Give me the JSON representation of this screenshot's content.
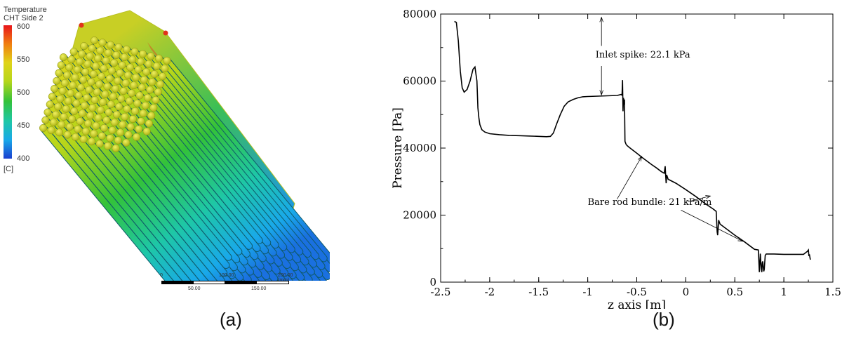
{
  "captions": {
    "a": "(a)",
    "b": "(b)"
  },
  "render_legend": {
    "title_line1": "Temperature",
    "title_line2": "CHT Side 2",
    "ticks": [
      "600",
      "550",
      "500",
      "450",
      "400"
    ],
    "unit": "[C]",
    "colors": {
      "high": "#e8141a",
      "mid": "#33c23a",
      "low": "#1a3fd0"
    }
  },
  "scale_bar": {
    "top_labels": [
      "0",
      "100.00",
      "200.00 (mm)"
    ],
    "bottom_labels": [
      "50.00",
      "150.00"
    ]
  },
  "chart_data": {
    "type": "line",
    "xlabel": "z axis [m]",
    "ylabel": "Pressure [Pa]",
    "xlim": [
      -2.5,
      1.5
    ],
    "ylim": [
      0,
      80000
    ],
    "xticks": [
      -2.5,
      -2,
      -1.5,
      -1,
      -0.5,
      0,
      0.5,
      1,
      1.5
    ],
    "xtick_labels": [
      "-2.5",
      "-2",
      "-1.5",
      "-1",
      "-0.5",
      "0",
      "0.5",
      "1",
      "1.5"
    ],
    "yticks": [
      0,
      20000,
      40000,
      60000,
      80000
    ],
    "ytick_labels": [
      "0",
      "20000",
      "40000",
      "60000",
      "80000"
    ],
    "grid": false,
    "series": [
      {
        "x": [
          -2.36,
          -2.34,
          -2.32,
          -2.3,
          -2.28,
          -2.26,
          -2.23,
          -2.2,
          -2.17,
          -2.15,
          -2.13,
          -2.12,
          -2.11,
          -2.1,
          -2.08,
          -2.05,
          -2.0,
          -1.9,
          -1.8,
          -1.7,
          -1.6,
          -1.5,
          -1.42,
          -1.38,
          -1.35,
          -1.32,
          -1.28,
          -1.24,
          -1.2,
          -1.15,
          -1.1,
          -1.05,
          -1.0,
          -0.9,
          -0.8,
          -0.7,
          -0.66,
          -0.65,
          -0.645,
          -0.64,
          -0.635,
          -0.63,
          -0.625,
          -0.62,
          -0.61,
          -0.6,
          -0.58,
          -0.55,
          -0.5,
          -0.45,
          -0.4,
          -0.35,
          -0.3,
          -0.25,
          -0.22,
          -0.21,
          -0.205,
          -0.2,
          -0.195,
          -0.19,
          -0.18,
          -0.1,
          0.0,
          0.1,
          0.2,
          0.28,
          0.31,
          0.32,
          0.325,
          0.33,
          0.335,
          0.34,
          0.35,
          0.4,
          0.5,
          0.6,
          0.7,
          0.74,
          0.75,
          0.755,
          0.76,
          0.765,
          0.77,
          0.775,
          0.78,
          0.785,
          0.79,
          0.795,
          0.8,
          0.81,
          0.82,
          0.85,
          0.9,
          1.0,
          1.1,
          1.2,
          1.24,
          1.25,
          1.255,
          1.26,
          1.27
        ],
        "y": [
          77800,
          77500,
          72000,
          63000,
          58000,
          56700,
          57500,
          60000,
          63500,
          64200,
          60000,
          52000,
          49000,
          47000,
          45500,
          44800,
          44300,
          44000,
          43800,
          43700,
          43600,
          43500,
          43400,
          43500,
          44500,
          47000,
          50000,
          52500,
          53800,
          54500,
          55000,
          55300,
          55400,
          55500,
          55600,
          55700,
          56000,
          55800,
          60300,
          51000,
          55000,
          53000,
          54500,
          42000,
          41200,
          40800,
          40300,
          39600,
          38500,
          37300,
          36200,
          35100,
          34100,
          33000,
          32500,
          34600,
          31800,
          29500,
          32000,
          31600,
          30700,
          29500,
          27600,
          25600,
          23400,
          21800,
          21100,
          15000,
          14000,
          16000,
          18500,
          18100,
          17300,
          16200,
          14000,
          12000,
          9800,
          9600,
          3000,
          5500,
          8500,
          6000,
          4000,
          3000,
          5800,
          6200,
          4500,
          3200,
          3800,
          8000,
          8400,
          8400,
          8400,
          8300,
          8300,
          8300,
          9200,
          9600,
          7800,
          8300,
          6700
        ]
      }
    ],
    "annotations": [
      {
        "text": "Inlet spike: 22.1 kPa"
      },
      {
        "text": "Bare rod bundle: 21 kPa/m"
      }
    ]
  }
}
